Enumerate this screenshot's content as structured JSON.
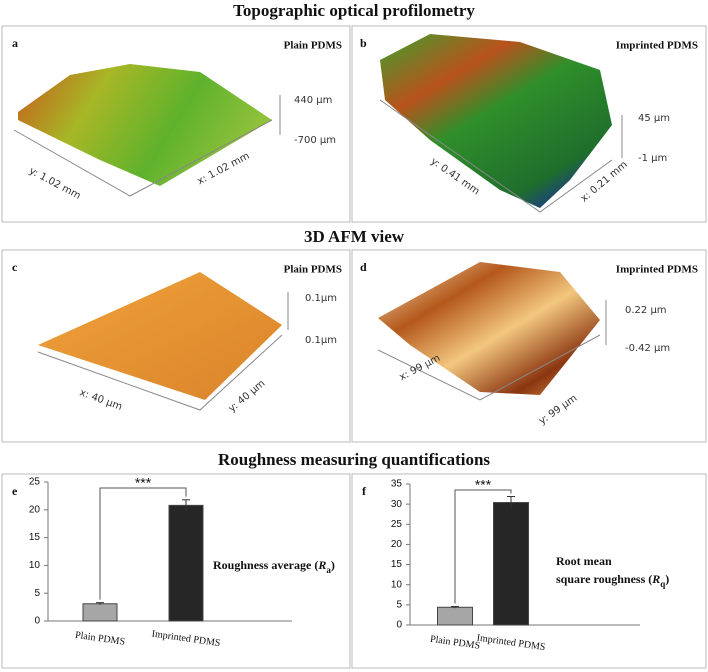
{
  "sections": [
    "Topographic optical profilometry",
    "3D AFM view",
    "Roughness measuring quantifications"
  ],
  "panels": [
    {
      "letter": "a",
      "title": "Plain PDMS",
      "z_top": "440 µm",
      "z_bottom": "-700 µm",
      "axis_1": "y: 1.02 mm",
      "axis_2": "x: 1.02 mm"
    },
    {
      "letter": "b",
      "title": "Imprinted PDMS",
      "z_top": "45 µm",
      "z_bottom": "-1 µm",
      "axis_1": "y: 0.41 mm",
      "axis_2": "x: 0.21 mm"
    },
    {
      "letter": "c",
      "title": "Plain PDMS",
      "z_top": "0.1µm",
      "z_bottom": "0.1µm",
      "axis_1": "x: 40 µm",
      "axis_2": "y: 40 µm"
    },
    {
      "letter": "d",
      "title": "Imprinted PDMS",
      "z_top": "0.22 µm",
      "z_bottom": "-0.42 µm",
      "axis_1": "x: 99 µm",
      "axis_2": "y: 99 µm"
    }
  ],
  "chart_data": [
    {
      "type": "bar",
      "letter": "e",
      "categories": [
        "Plain PDMS",
        "Imprinted PDMS"
      ],
      "values": [
        3.1,
        20.8
      ],
      "errors": [
        0.2,
        1.0
      ],
      "colors": [
        "#a6a6a6",
        "#262626"
      ],
      "ylim": [
        0,
        25
      ],
      "yticks": [
        0,
        5,
        10,
        15,
        20,
        25
      ],
      "annotation": "***",
      "label_lines": [
        [
          "Roughness average (",
          "R",
          "a",
          ")"
        ]
      ]
    },
    {
      "type": "bar",
      "letter": "f",
      "categories": [
        "Plain PDMS",
        "Imprinted PDMS"
      ],
      "values": [
        4.4,
        30.4
      ],
      "errors": [
        0.2,
        1.5
      ],
      "colors": [
        "#a6a6a6",
        "#262626"
      ],
      "ylim": [
        0,
        35
      ],
      "yticks": [
        0,
        5,
        10,
        15,
        20,
        25,
        30,
        35
      ],
      "annotation": "***",
      "label_lines": [
        [
          "Root mean"
        ],
        [
          "square roughness (",
          "R",
          "q",
          ")"
        ]
      ]
    }
  ]
}
